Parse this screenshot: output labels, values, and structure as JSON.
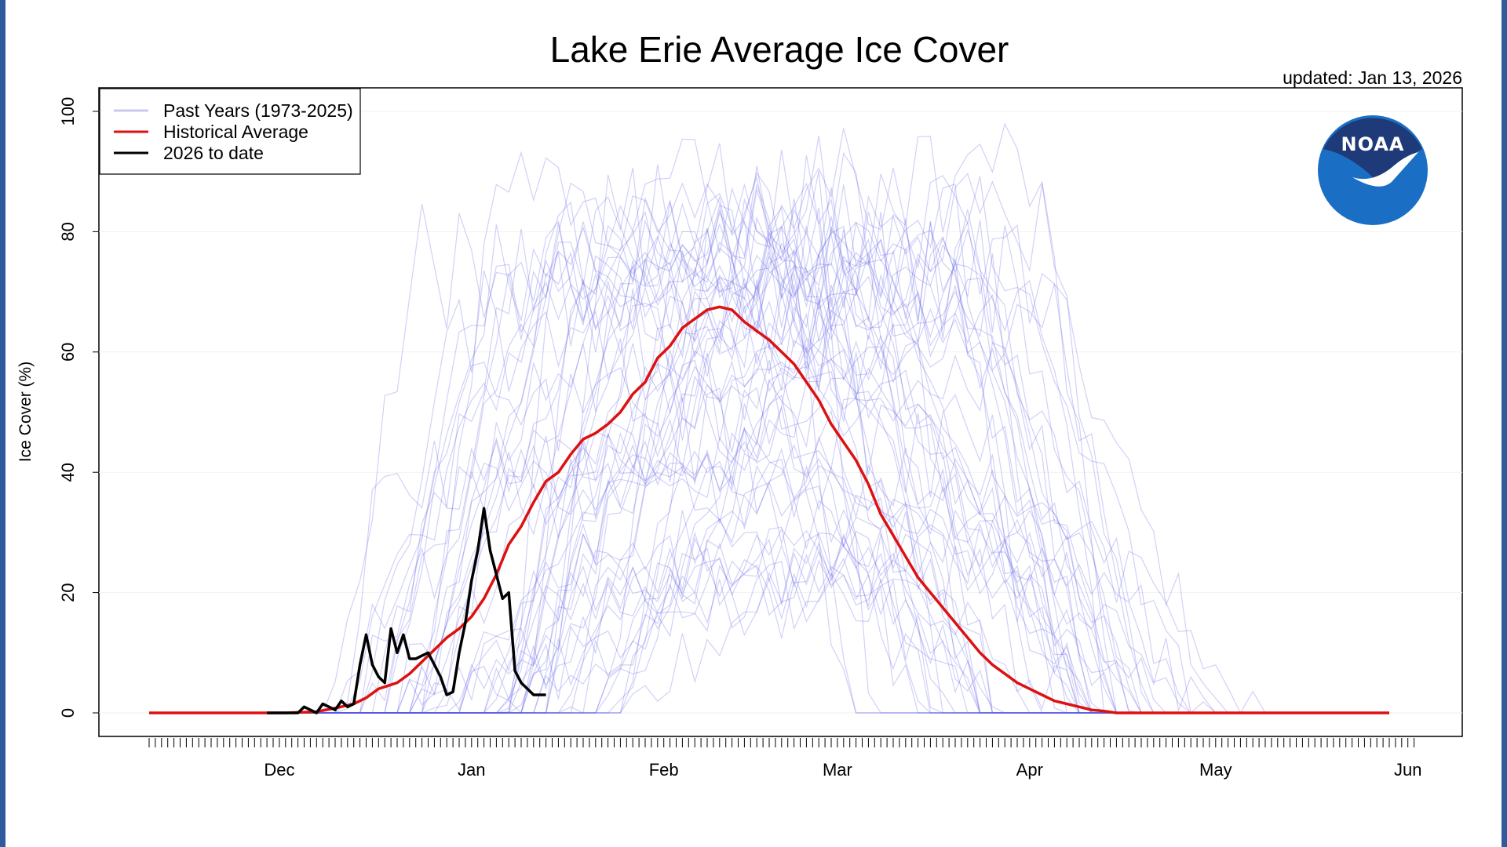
{
  "chart_data": {
    "type": "line",
    "title": "Lake Erie Average Ice Cover",
    "updated": "updated: Jan 13, 2026",
    "ylabel": "Ice Cover (%)",
    "xlabel": "",
    "x_unit": "day of season (0 = Nov 10)",
    "xlim": [
      0,
      205
    ],
    "ylim": [
      0,
      100
    ],
    "y_ticks": [
      0,
      20,
      40,
      60,
      80,
      100
    ],
    "x_ticks": [
      {
        "label": "Dec",
        "x": 21
      },
      {
        "label": "Jan",
        "x": 52
      },
      {
        "label": "Feb",
        "x": 83
      },
      {
        "label": "Mar",
        "x": 111
      },
      {
        "label": "Apr",
        "x": 142
      },
      {
        "label": "May",
        "x": 172
      },
      {
        "label": "Jun",
        "x": 203
      }
    ],
    "grid": true,
    "legend_position": "top-left",
    "legend": [
      {
        "label": "Past Years (1973-2025)",
        "color": "#c8c8f0"
      },
      {
        "label": "Historical Average",
        "color": "#dd1111"
      },
      {
        "label": "2026 to date",
        "color": "#000000"
      }
    ],
    "colors": {
      "past_years": "#5a5ae6",
      "average": "#dd1111",
      "current": "#000000",
      "noaa_blue": "#1a6fc4",
      "noaa_navy": "#1f3a78"
    },
    "logo_text": "NOAA",
    "series": [
      {
        "name": "Historical Average",
        "x": [
          0,
          10,
          18,
          22,
          27,
          30,
          33,
          35,
          37,
          40,
          42,
          44,
          46,
          48,
          50,
          52,
          54,
          56,
          58,
          60,
          62,
          64,
          66,
          68,
          70,
          72,
          74,
          76,
          78,
          80,
          82,
          84,
          86,
          88,
          90,
          92,
          94,
          96,
          98,
          100,
          102,
          104,
          106,
          108,
          110,
          112,
          114,
          116,
          118,
          120,
          122,
          124,
          126,
          128,
          130,
          132,
          134,
          136,
          138,
          140,
          142,
          144,
          146,
          148,
          150,
          152,
          154,
          156,
          158,
          160,
          162,
          164,
          166,
          170,
          175,
          180,
          190,
          200
        ],
        "y": [
          0,
          0,
          0,
          0,
          0.2,
          0.8,
          1.5,
          2.5,
          4,
          5,
          6.5,
          8.5,
          10.5,
          12.5,
          14,
          16,
          19,
          23,
          28,
          31,
          35,
          38.5,
          40,
          43,
          45.5,
          46.5,
          48,
          50,
          53,
          55,
          59,
          61,
          64,
          65.5,
          67,
          67.5,
          67,
          65,
          63.5,
          62,
          60,
          58,
          55,
          52,
          48,
          45,
          42,
          38,
          33,
          29.5,
          26,
          22.5,
          20,
          17.5,
          15,
          12.5,
          10,
          8,
          6.5,
          5,
          4,
          3,
          2,
          1.5,
          1,
          0.5,
          0.3,
          0,
          0,
          0,
          0,
          0,
          0,
          0,
          0,
          0,
          0,
          0
        ]
      },
      {
        "name": "2026 to date",
        "x": [
          19,
          23,
          24,
          25,
          26,
          27,
          28,
          29,
          30,
          31,
          32,
          33,
          34,
          35,
          36,
          37,
          38,
          39,
          40,
          41,
          42,
          43,
          44,
          45,
          46,
          47,
          48,
          49,
          50,
          51,
          52,
          53,
          54,
          55,
          56,
          57,
          58,
          59,
          60,
          61,
          62,
          63,
          64
        ],
        "y": [
          0,
          0,
          0,
          1,
          0.5,
          0,
          1.5,
          1,
          0.5,
          2,
          1,
          1.5,
          8,
          13,
          8,
          6,
          5,
          14,
          10,
          13,
          9,
          9,
          9.5,
          10,
          8,
          6,
          3,
          3.5,
          10,
          15,
          22,
          27,
          34,
          27,
          23,
          19,
          20,
          7,
          5,
          4,
          3,
          3,
          3
        ]
      }
    ]
  }
}
